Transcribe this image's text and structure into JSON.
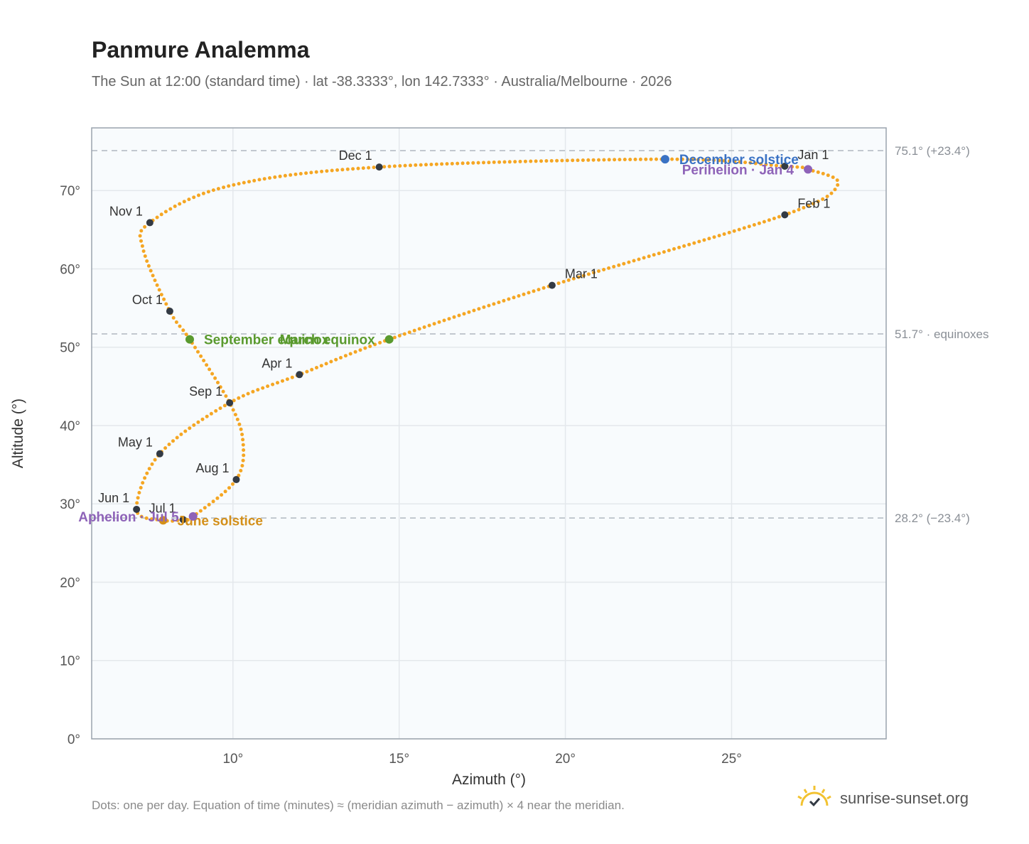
{
  "title": "Panmure Analemma",
  "subtitle": "The Sun at 12:00 (standard time) · lat -38.3333°, lon 142.7333° · Australia/Melbourne · 2026",
  "footnote": "Dots: one per day. Equation of time (minutes) ≈ (meridian azimuth − azimuth) × 4 near the meridian.",
  "brand": "sunrise-sunset.org",
  "colors": {
    "curve": "#f5a623",
    "month_marker": "#333a44",
    "equinox": "#5a9a2e",
    "december_solstice": "#3a72c4",
    "june_solstice": "#d4901a",
    "apsis": "#8e63b8",
    "plot_background": "#f8fbfd",
    "grid": "#e4e8ec",
    "reference_line": "#b0b8c0"
  },
  "chart_data": {
    "type": "scatter",
    "title": "Panmure Analemma",
    "xlabel": "Azimuth (°)",
    "ylabel": "Altitude (°)",
    "xlim": [
      5.75,
      29.65
    ],
    "ylim": [
      0,
      78
    ],
    "x_ticks": [
      10,
      15,
      20,
      25
    ],
    "x_tick_labels": [
      "10°",
      "15°",
      "20°",
      "25°"
    ],
    "y_ticks": [
      0,
      10,
      20,
      30,
      40,
      50,
      60,
      70
    ],
    "y_tick_labels": [
      "0°",
      "10°",
      "20°",
      "30°",
      "40°",
      "50°",
      "60°",
      "70°"
    ],
    "grid": true,
    "reference_lines": [
      {
        "y": 75.1,
        "label": "75.1° (+23.4°)"
      },
      {
        "y": 51.7,
        "label": "51.7° · equinoxes"
      },
      {
        "y": 28.2,
        "label": "28.2° (−23.4°)"
      }
    ],
    "path_points": [
      {
        "x": 27.3,
        "y": 72.7
      },
      {
        "x": 28.2,
        "y": 70.8
      },
      {
        "x": 26.6,
        "y": 66.9
      },
      {
        "x": 19.6,
        "y": 57.9
      },
      {
        "x": 14.7,
        "y": 51.0
      },
      {
        "x": 12.0,
        "y": 46.5
      },
      {
        "x": 9.9,
        "y": 42.9
      },
      {
        "x": 7.8,
        "y": 36.4
      },
      {
        "x": 7.1,
        "y": 29.3
      },
      {
        "x": 7.9,
        "y": 27.9
      },
      {
        "x": 8.5,
        "y": 28.0
      },
      {
        "x": 8.8,
        "y": 28.4
      },
      {
        "x": 10.1,
        "y": 33.1
      },
      {
        "x": 10.3,
        "y": 38.0
      },
      {
        "x": 9.9,
        "y": 42.9
      },
      {
        "x": 8.7,
        "y": 51.0
      },
      {
        "x": 8.1,
        "y": 54.6
      },
      {
        "x": 7.3,
        "y": 62.5
      },
      {
        "x": 7.5,
        "y": 65.9
      },
      {
        "x": 9.8,
        "y": 70.5
      },
      {
        "x": 14.4,
        "y": 73.0
      },
      {
        "x": 23.0,
        "y": 74.0
      },
      {
        "x": 26.6,
        "y": 73.1
      },
      {
        "x": 27.3,
        "y": 72.7
      }
    ],
    "month_markers": [
      {
        "label": "Jan 1",
        "x": 26.6,
        "y": 73.1,
        "anchor": "right"
      },
      {
        "label": "Feb 1",
        "x": 26.6,
        "y": 66.9,
        "anchor": "right"
      },
      {
        "label": "Mar 1",
        "x": 19.6,
        "y": 57.9,
        "anchor": "right"
      },
      {
        "label": "Apr 1",
        "x": 12.0,
        "y": 46.5,
        "anchor": "left"
      },
      {
        "label": "May 1",
        "x": 7.8,
        "y": 36.4,
        "anchor": "left"
      },
      {
        "label": "Jun 1",
        "x": 7.1,
        "y": 29.3,
        "anchor": "left"
      },
      {
        "label": "Jul 1",
        "x": 8.5,
        "y": 28.0,
        "anchor": "left"
      },
      {
        "label": "Aug 1",
        "x": 10.1,
        "y": 33.1,
        "anchor": "left"
      },
      {
        "label": "Sep 1",
        "x": 9.9,
        "y": 42.9,
        "anchor": "left"
      },
      {
        "label": "Oct 1",
        "x": 8.1,
        "y": 54.6,
        "anchor": "left"
      },
      {
        "label": "Nov 1",
        "x": 7.5,
        "y": 65.9,
        "anchor": "left"
      },
      {
        "label": "Dec 1",
        "x": 14.4,
        "y": 73.0,
        "anchor": "left"
      }
    ],
    "events": [
      {
        "label": "December solstice",
        "x": 23.0,
        "y": 74.0,
        "kind": "december_solstice",
        "anchor": "right"
      },
      {
        "label": "Perihelion · Jan 4",
        "x": 27.3,
        "y": 72.7,
        "kind": "apsis",
        "anchor": "left"
      },
      {
        "label": "March equinox",
        "x": 14.7,
        "y": 51.0,
        "kind": "equinox",
        "anchor": "left"
      },
      {
        "label": "September equinox",
        "x": 8.7,
        "y": 51.0,
        "kind": "equinox",
        "anchor": "right"
      },
      {
        "label": "June solstice",
        "x": 7.9,
        "y": 27.9,
        "kind": "june_solstice",
        "anchor": "right"
      },
      {
        "label": "Aphelion · Jul 5",
        "x": 8.8,
        "y": 28.4,
        "kind": "apsis",
        "anchor": "left"
      }
    ]
  }
}
